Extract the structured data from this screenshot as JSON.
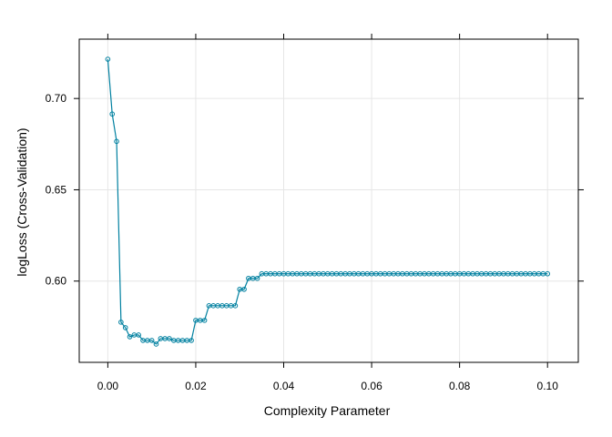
{
  "chart_data": {
    "type": "line",
    "title": "",
    "xlabel": "Complexity Parameter",
    "ylabel": "logLoss (Cross-Validation)",
    "xlim": [
      -0.0065,
      0.107
    ],
    "ylim": [
      0.5555,
      0.7325
    ],
    "x_ticks": [
      0.0,
      0.02,
      0.04,
      0.06,
      0.08,
      0.1
    ],
    "x_tick_labels": [
      "0.00",
      "0.02",
      "0.04",
      "0.06",
      "0.08",
      "0.10"
    ],
    "y_ticks": [
      0.6,
      0.65,
      0.7
    ],
    "y_tick_labels": [
      "0.60",
      "0.65",
      "0.70"
    ],
    "grid": true,
    "series_color": "#0080a0",
    "x": [
      0.0,
      0.001,
      0.002,
      0.003,
      0.004,
      0.005,
      0.006,
      0.007,
      0.008,
      0.009,
      0.01,
      0.011,
      0.012,
      0.013,
      0.014,
      0.015,
      0.016,
      0.017,
      0.018,
      0.019,
      0.02,
      0.021,
      0.022,
      0.023,
      0.024,
      0.025,
      0.026,
      0.027,
      0.028,
      0.029,
      0.03,
      0.031,
      0.032,
      0.033,
      0.034,
      0.035,
      0.036,
      0.037,
      0.038,
      0.039,
      0.04,
      0.041,
      0.042,
      0.043,
      0.044,
      0.045,
      0.046,
      0.047,
      0.048,
      0.049,
      0.05,
      0.051,
      0.052,
      0.053,
      0.054,
      0.055,
      0.056,
      0.057,
      0.058,
      0.059,
      0.06,
      0.061,
      0.062,
      0.063,
      0.064,
      0.065,
      0.066,
      0.067,
      0.068,
      0.069,
      0.07,
      0.071,
      0.072,
      0.073,
      0.074,
      0.075,
      0.076,
      0.077,
      0.078,
      0.079,
      0.08,
      0.081,
      0.082,
      0.083,
      0.084,
      0.085,
      0.086,
      0.087,
      0.088,
      0.089,
      0.09,
      0.091,
      0.092,
      0.093,
      0.094,
      0.095,
      0.096,
      0.097,
      0.098,
      0.099,
      0.1
    ],
    "y": [
      0.7215,
      0.6915,
      0.6765,
      0.5775,
      0.5745,
      0.5695,
      0.5705,
      0.5705,
      0.5675,
      0.5675,
      0.5675,
      0.5655,
      0.5685,
      0.5685,
      0.5685,
      0.5675,
      0.5675,
      0.5675,
      0.5675,
      0.5675,
      0.5785,
      0.5785,
      0.5785,
      0.5865,
      0.5865,
      0.5865,
      0.5865,
      0.5865,
      0.5865,
      0.5865,
      0.5955,
      0.5955,
      0.6015,
      0.6015,
      0.6015,
      0.604,
      0.604,
      0.604,
      0.604,
      0.604,
      0.604,
      0.604,
      0.604,
      0.604,
      0.604,
      0.604,
      0.604,
      0.604,
      0.604,
      0.604,
      0.604,
      0.604,
      0.604,
      0.604,
      0.604,
      0.604,
      0.604,
      0.604,
      0.604,
      0.604,
      0.604,
      0.604,
      0.604,
      0.604,
      0.604,
      0.604,
      0.604,
      0.604,
      0.604,
      0.604,
      0.604,
      0.604,
      0.604,
      0.604,
      0.604,
      0.604,
      0.604,
      0.604,
      0.604,
      0.604,
      0.604,
      0.604,
      0.604,
      0.604,
      0.604,
      0.604,
      0.604,
      0.604,
      0.604,
      0.604,
      0.604,
      0.604,
      0.604,
      0.604,
      0.604,
      0.604,
      0.604,
      0.604,
      0.604,
      0.604,
      0.604
    ]
  }
}
